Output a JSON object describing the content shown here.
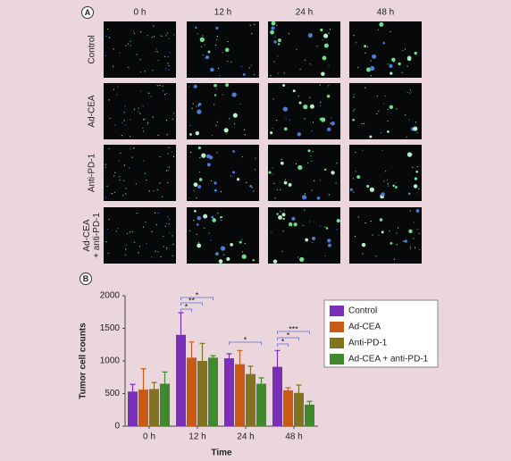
{
  "panel_a": {
    "label": "A",
    "columns": [
      "0 h",
      "12 h",
      "24 h",
      "48 h"
    ],
    "rows": [
      [
        "Control"
      ],
      [
        "Ad-CEA"
      ],
      [
        "Anti-PD-1"
      ],
      [
        "Ad-CEA",
        "+ anti-PD-1"
      ]
    ]
  },
  "chart_data": {
    "type": "bar",
    "panel_label": "B",
    "x_label": "Time",
    "y_label": "Tumor cell counts",
    "categories": [
      "0 h",
      "12 h",
      "24 h",
      "48 h"
    ],
    "ylim": [
      0,
      2000
    ],
    "yticks": [
      0,
      500,
      1000,
      1500,
      2000
    ],
    "series": [
      {
        "name": "Control",
        "color": "#7a2fb8",
        "values": [
          530,
          1400,
          1040,
          910
        ],
        "errors": [
          110,
          340,
          70,
          250
        ]
      },
      {
        "name": "Ad-CEA",
        "color": "#c85a14",
        "values": [
          560,
          1050,
          950,
          550
        ],
        "errors": [
          320,
          240,
          210,
          40
        ]
      },
      {
        "name": "Anti-PD-1",
        "color": "#817320",
        "values": [
          570,
          1000,
          800,
          510
        ],
        "errors": [
          100,
          270,
          120,
          120
        ]
      },
      {
        "name": "Ad-CEA + anti-PD-1",
        "color": "#3e8a2c",
        "values": [
          650,
          1050,
          650,
          330
        ],
        "errors": [
          180,
          30,
          90,
          50
        ]
      }
    ],
    "annotations": [
      "*",
      "**",
      "*",
      "*",
      "***",
      "*",
      "*"
    ]
  }
}
